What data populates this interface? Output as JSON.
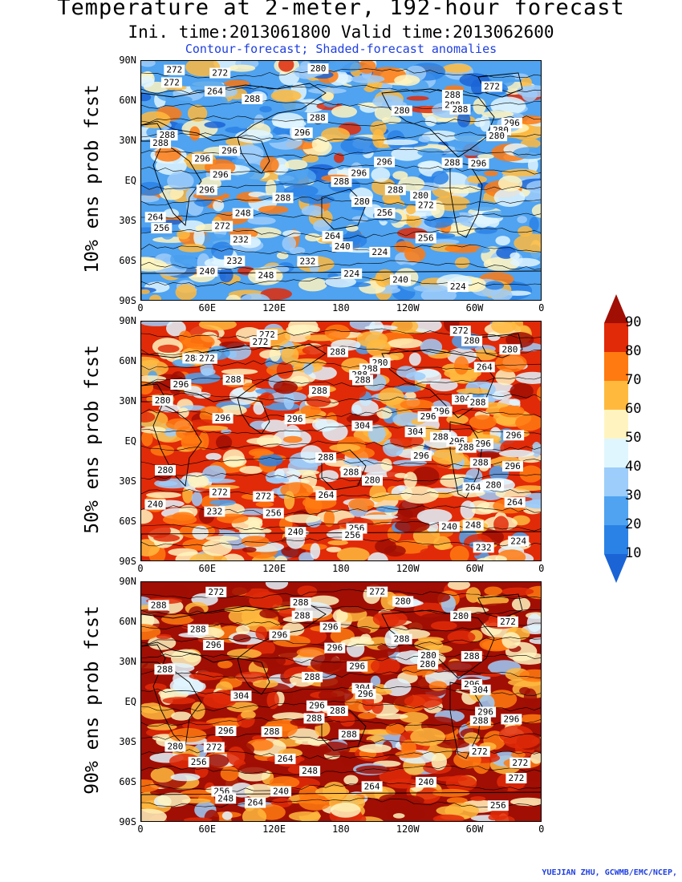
{
  "titles": {
    "line1": "Temperature at 2-meter, 192-hour forecast",
    "line2": "Ini. time:2013061800   Valid time:2013062600",
    "line3": "Contour-forecast; Shaded-forecast anomalies"
  },
  "credit": "YUEJIAN ZHU, GCWMB/EMC/NCEP,",
  "lat_ticks": [
    "90N",
    "60N",
    "30N",
    "EQ",
    "30S",
    "60S",
    "90S"
  ],
  "lon_ticks": [
    "0",
    "60E",
    "120E",
    "180",
    "120W",
    "60W",
    "0"
  ],
  "colorbar": {
    "levels": [
      "90",
      "80",
      "70",
      "60",
      "50",
      "40",
      "30",
      "20",
      "10"
    ],
    "colors": [
      "#1a64d6",
      "#2a82e6",
      "#4fa3f0",
      "#9dcdfa",
      "#e0f6ff",
      "#fff4c0",
      "#ffba3e",
      "#ff7a10",
      "#e02a08",
      "#a00e04"
    ]
  },
  "panels": [
    {
      "id": "p10",
      "ylabel": "10% ens prob fcst",
      "labels": [
        "272",
        "280",
        "272",
        "272",
        "272",
        "264",
        "288",
        "288",
        "288",
        "280",
        "288",
        "288",
        "296",
        "280",
        "296",
        "288",
        "280",
        "288",
        "296",
        "296",
        "296",
        "288",
        "296",
        "296",
        "296",
        "288",
        "296",
        "288",
        "288",
        "280",
        "280",
        "272",
        "256",
        "248",
        "264",
        "272",
        "256",
        "264",
        "256",
        "232",
        "240",
        "224",
        "232",
        "232",
        "240",
        "248",
        "224",
        "240",
        "224"
      ]
    },
    {
      "id": "p50",
      "ylabel": "50% ens prob fcst",
      "labels": [
        "272",
        "272",
        "272",
        "280",
        "280",
        "288",
        "288",
        "280",
        "272",
        "264",
        "288",
        "288",
        "288",
        "288",
        "296",
        "288",
        "304",
        "280",
        "288",
        "296",
        "296",
        "296",
        "296",
        "304",
        "304",
        "296",
        "296",
        "288",
        "296",
        "288",
        "296",
        "288",
        "296",
        "288",
        "280",
        "288",
        "280",
        "280",
        "264",
        "272",
        "264",
        "272",
        "264",
        "240",
        "232",
        "256",
        "248",
        "240",
        "256",
        "240",
        "256",
        "224",
        "232"
      ]
    },
    {
      "id": "p90",
      "ylabel": "90% ens prob fcst",
      "labels": [
        "272",
        "272",
        "288",
        "280",
        "288",
        "280",
        "288",
        "272",
        "296",
        "288",
        "296",
        "288",
        "296",
        "296",
        "280",
        "288",
        "280",
        "288",
        "296",
        "288",
        "296",
        "304",
        "304",
        "296",
        "304",
        "296",
        "288",
        "296",
        "288",
        "296",
        "288",
        "296",
        "288",
        "288",
        "280",
        "272",
        "272",
        "264",
        "272",
        "256",
        "248",
        "272",
        "240",
        "264",
        "256",
        "240",
        "248",
        "256",
        "264"
      ]
    }
  ]
}
